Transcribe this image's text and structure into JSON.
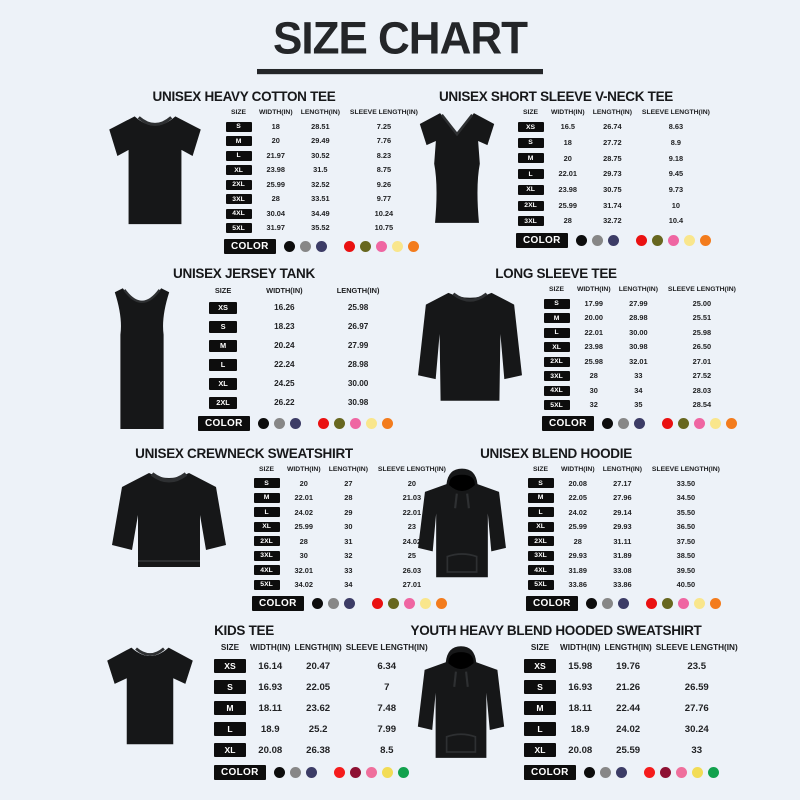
{
  "page": {
    "title": "SIZE CHART",
    "background": "#edf2f8"
  },
  "color_row_label": "COLOR",
  "palettes": {
    "adult": [
      "#0d0d0d",
      "#878787",
      "#3c3c66",
      "#ea1111",
      "#67671f",
      "#ef66a2",
      "#f9e68c",
      "#f37c1d"
    ],
    "kids": [
      "#0d0d0d",
      "#878787",
      "#3c3c66",
      "#f51c1c",
      "#8e1133",
      "#ef6f9c",
      "#f2dc55",
      "#12a14d"
    ]
  },
  "sections": [
    {
      "title": "UNISEX HEAVY COTTON TEE",
      "garment": "tee-icon",
      "palette": "adult",
      "headers": [
        "SIZE",
        "WIDTH(IN)",
        "LENGTH(IN)",
        "SLEEVE LENGTH(IN)"
      ],
      "rows": [
        [
          "S",
          "18",
          "28.51",
          "7.25"
        ],
        [
          "M",
          "20",
          "29.49",
          "7.76"
        ],
        [
          "L",
          "21.97",
          "30.52",
          "8.23"
        ],
        [
          "XL",
          "23.98",
          "31.5",
          "8.75"
        ],
        [
          "2XL",
          "25.99",
          "32.52",
          "9.26"
        ],
        [
          "3XL",
          "28",
          "33.51",
          "9.77"
        ],
        [
          "4XL",
          "30.04",
          "34.49",
          "10.24"
        ],
        [
          "5XL",
          "31.97",
          "35.52",
          "10.75"
        ]
      ]
    },
    {
      "title": "UNISEX SHORT SLEEVE V-NECK TEE",
      "garment": "vneck-tee-icon",
      "palette": "adult",
      "headers": [
        "SIZE",
        "WIDTH(IN)",
        "LENGTH(IN)",
        "SLEEVE LENGTH(IN)"
      ],
      "rows": [
        [
          "XS",
          "16.5",
          "26.74",
          "8.63"
        ],
        [
          "S",
          "18",
          "27.72",
          "8.9"
        ],
        [
          "M",
          "20",
          "28.75",
          "9.18"
        ],
        [
          "L",
          "22.01",
          "29.73",
          "9.45"
        ],
        [
          "XL",
          "23.98",
          "30.75",
          "9.73"
        ],
        [
          "2XL",
          "25.99",
          "31.74",
          "10"
        ],
        [
          "3XL",
          "28",
          "32.72",
          "10.4"
        ]
      ]
    },
    {
      "title": "UNISEX JERSEY TANK",
      "garment": "tank-top-icon",
      "palette": "adult",
      "headers": [
        "SIZE",
        "WIDTH(IN)",
        "LENGTH(IN)"
      ],
      "rows": [
        [
          "XS",
          "16.26",
          "25.98"
        ],
        [
          "S",
          "18.23",
          "26.97"
        ],
        [
          "M",
          "20.24",
          "27.99"
        ],
        [
          "L",
          "22.24",
          "28.98"
        ],
        [
          "XL",
          "24.25",
          "30.00"
        ],
        [
          "2XL",
          "26.22",
          "30.98"
        ]
      ]
    },
    {
      "title": "LONG SLEEVE TEE",
      "garment": "long-sleeve-tee-icon",
      "palette": "adult",
      "headers": [
        "SIZE",
        "WIDTH(IN)",
        "LENGTH(IN)",
        "SLEEVE LENGTH(IN)"
      ],
      "rows": [
        [
          "S",
          "17.99",
          "27.99",
          "25.00"
        ],
        [
          "M",
          "20.00",
          "28.98",
          "25.51"
        ],
        [
          "L",
          "22.01",
          "30.00",
          "25.98"
        ],
        [
          "XL",
          "23.98",
          "30.98",
          "26.50"
        ],
        [
          "2XL",
          "25.98",
          "32.01",
          "27.01"
        ],
        [
          "3XL",
          "28",
          "33",
          "27.52"
        ],
        [
          "4XL",
          "30",
          "34",
          "28.03"
        ],
        [
          "5XL",
          "32",
          "35",
          "28.54"
        ]
      ]
    },
    {
      "title": "UNISEX CREWNECK SWEATSHIRT",
      "garment": "crewneck-sweatshirt-icon",
      "palette": "adult",
      "headers": [
        "SIZE",
        "WIDTH(IN)",
        "LENGTH(IN)",
        "SLEEVE LENGTH(IN)"
      ],
      "rows": [
        [
          "S",
          "20",
          "27",
          "20"
        ],
        [
          "M",
          "22.01",
          "28",
          "21.03"
        ],
        [
          "L",
          "24.02",
          "29",
          "22.01"
        ],
        [
          "XL",
          "25.99",
          "30",
          "23"
        ],
        [
          "2XL",
          "28",
          "31",
          "24.02"
        ],
        [
          "3XL",
          "30",
          "32",
          "25"
        ],
        [
          "4XL",
          "32.01",
          "33",
          "26.03"
        ],
        [
          "5XL",
          "34.02",
          "34",
          "27.01"
        ]
      ]
    },
    {
      "title": "UNISEX BLEND HOODIE",
      "garment": "hoodie-icon",
      "palette": "adult",
      "headers": [
        "SIZE",
        "WIDTH(IN)",
        "LENGTH(IN)",
        "SLEEVE LENGTH(IN)"
      ],
      "rows": [
        [
          "S",
          "20.08",
          "27.17",
          "33.50"
        ],
        [
          "M",
          "22.05",
          "27.96",
          "34.50"
        ],
        [
          "L",
          "24.02",
          "29.14",
          "35.50"
        ],
        [
          "XL",
          "25.99",
          "29.93",
          "36.50"
        ],
        [
          "2XL",
          "28",
          "31.11",
          "37.50"
        ],
        [
          "3XL",
          "29.93",
          "31.89",
          "38.50"
        ],
        [
          "4XL",
          "31.89",
          "33.08",
          "39.50"
        ],
        [
          "5XL",
          "33.86",
          "33.86",
          "40.50"
        ]
      ]
    },
    {
      "title": "KIDS TEE",
      "garment": "kids-tee-icon",
      "palette": "kids",
      "headers": [
        "SIZE",
        "WIDTH(IN)",
        "LENGTH(IN)",
        "SLEEVE LENGTH(IN)"
      ],
      "rows": [
        [
          "XS",
          "16.14",
          "20.47",
          "6.34"
        ],
        [
          "S",
          "16.93",
          "22.05",
          "7"
        ],
        [
          "M",
          "18.11",
          "23.62",
          "7.48"
        ],
        [
          "L",
          "18.9",
          "25.2",
          "7.99"
        ],
        [
          "XL",
          "20.08",
          "26.38",
          "8.5"
        ]
      ]
    },
    {
      "title": "YOUTH HEAVY BLEND HOODED SWEATSHIRT",
      "garment": "youth-hoodie-icon",
      "palette": "kids",
      "headers": [
        "SIZE",
        "WIDTH(IN)",
        "LENGTH(IN)",
        "SLEEVE LENGTH(IN)"
      ],
      "rows": [
        [
          "XS",
          "15.98",
          "19.76",
          "23.5"
        ],
        [
          "S",
          "16.93",
          "21.26",
          "26.59"
        ],
        [
          "M",
          "18.11",
          "22.44",
          "27.76"
        ],
        [
          "L",
          "18.9",
          "24.02",
          "30.24"
        ],
        [
          "XL",
          "20.08",
          "25.59",
          "33"
        ]
      ]
    }
  ]
}
